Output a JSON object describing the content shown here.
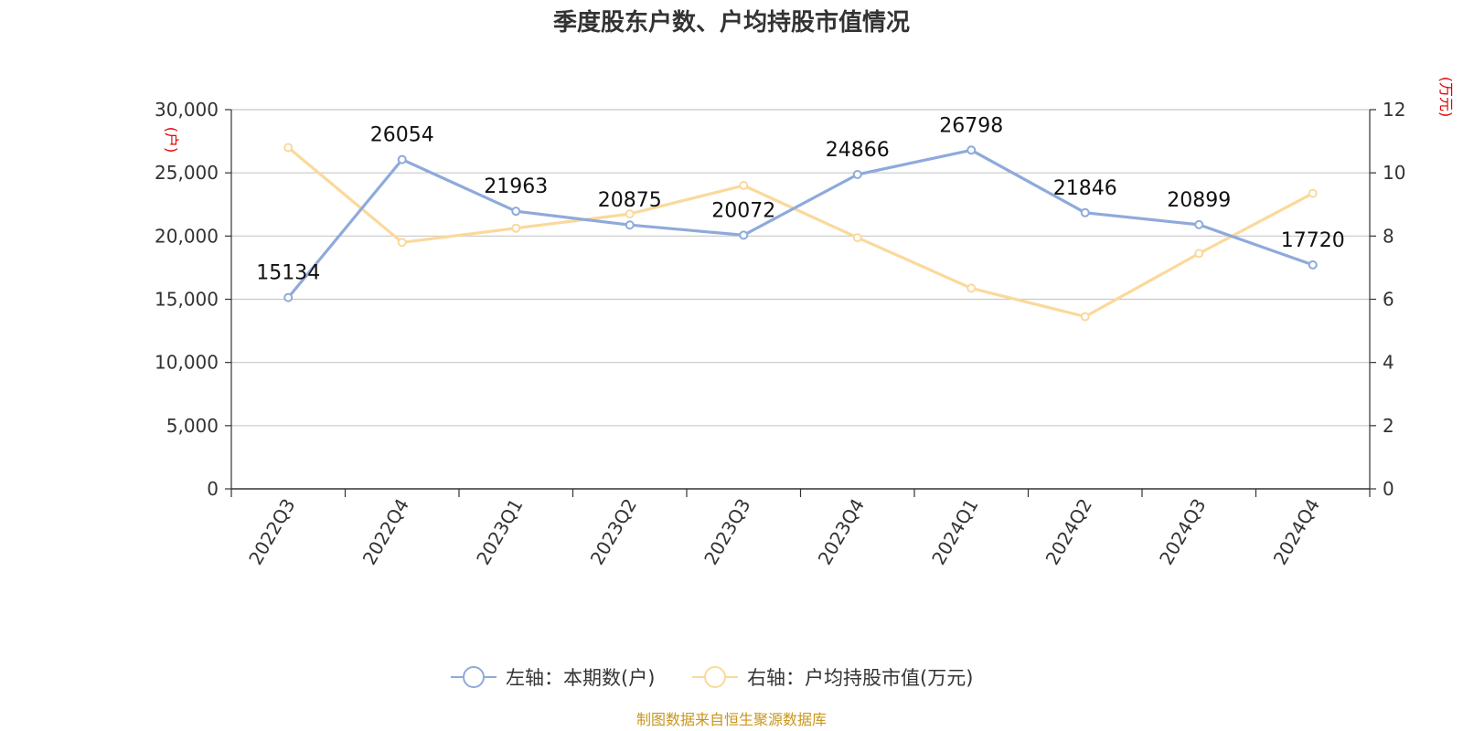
{
  "chart_data": {
    "type": "line",
    "title": "季度股东户数、户均持股市值情况",
    "categories": [
      "2022Q3",
      "2022Q4",
      "2023Q1",
      "2023Q2",
      "2023Q3",
      "2023Q4",
      "2024Q1",
      "2024Q2",
      "2024Q3",
      "2024Q4"
    ],
    "left_axis": {
      "unit": "(户)",
      "ylim": [
        0,
        30000
      ],
      "ticks": [
        "0",
        "5,000",
        "10,000",
        "15,000",
        "20,000",
        "25,000",
        "30,000"
      ]
    },
    "right_axis": {
      "unit": "(万元)",
      "ylim": [
        0,
        12
      ],
      "ticks": [
        "0",
        "2",
        "4",
        "6",
        "8",
        "10",
        "12"
      ]
    },
    "series": [
      {
        "name": "左轴：本期数(户)",
        "axis": "left",
        "color": "#8eaadb",
        "values": [
          15134,
          26054,
          21963,
          20875,
          20072,
          24866,
          26798,
          21846,
          20899,
          17720
        ],
        "labels": [
          "15134",
          "26054",
          "21963",
          "20875",
          "20072",
          "24866",
          "26798",
          "21846",
          "20899",
          "17720"
        ]
      },
      {
        "name": "右轴：户均持股市值(万元)",
        "axis": "right",
        "color": "#fbd99b",
        "values": [
          10.8,
          7.8,
          8.25,
          8.7,
          9.6,
          7.95,
          6.35,
          5.45,
          7.45,
          9.35
        ]
      }
    ],
    "grid": true,
    "legend_position": "bottom-center",
    "source": "制图数据来自恒生聚源数据库"
  }
}
